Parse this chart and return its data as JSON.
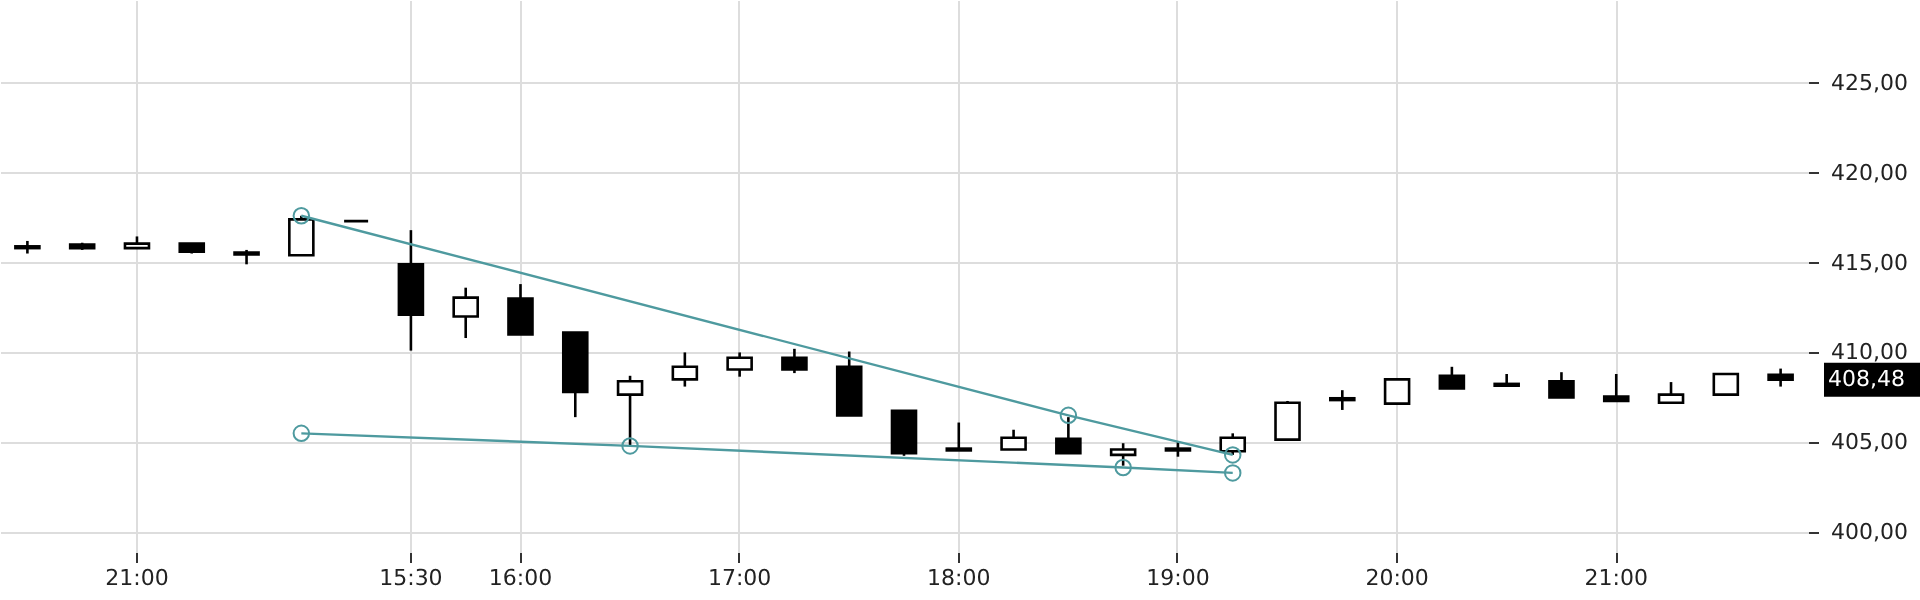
{
  "chart_data": {
    "type": "candlestick",
    "categories": [
      null,
      null,
      "21:00",
      null,
      null,
      null,
      null,
      "15:30",
      null,
      "16:00",
      null,
      null,
      null,
      "17:00",
      null,
      null,
      null,
      "18:00",
      null,
      null,
      null,
      "19:00",
      null,
      null,
      null,
      "20:00",
      null,
      null,
      null,
      "21:00",
      null,
      null,
      null
    ],
    "ohlc": [
      [
        415.8,
        416.2,
        415.5,
        415.9
      ],
      [
        416.0,
        416.1,
        415.7,
        415.8
      ],
      [
        415.8,
        416.45,
        415.8,
        416.05
      ],
      [
        416.05,
        416.05,
        415.5,
        415.6
      ],
      [
        415.55,
        415.7,
        414.9,
        415.45
      ],
      [
        415.4,
        417.6,
        415.4,
        417.4
      ],
      [
        417.3,
        417.3,
        417.3,
        417.3
      ],
      [
        414.9,
        416.8,
        410.1,
        412.1
      ],
      [
        412.0,
        413.6,
        410.8,
        413.05
      ],
      [
        413.0,
        413.8,
        411.0,
        411.0
      ],
      [
        411.1,
        411.1,
        406.4,
        407.8
      ],
      [
        407.65,
        408.7,
        404.8,
        408.4
      ],
      [
        408.5,
        410.0,
        408.1,
        409.2
      ],
      [
        409.05,
        410.0,
        408.65,
        409.7
      ],
      [
        409.7,
        410.2,
        408.85,
        409.05
      ],
      [
        409.2,
        410.05,
        406.5,
        406.5
      ],
      [
        406.75,
        406.75,
        404.25,
        404.4
      ],
      [
        404.65,
        406.1,
        404.55,
        404.55
      ],
      [
        404.6,
        405.7,
        404.6,
        405.25
      ],
      [
        405.2,
        406.4,
        404.4,
        404.4
      ],
      [
        404.3,
        404.95,
        403.7,
        404.6
      ],
      [
        404.65,
        405.05,
        404.2,
        404.55
      ],
      [
        404.5,
        405.5,
        404.3,
        405.25
      ],
      [
        405.15,
        407.3,
        405.15,
        407.2
      ],
      [
        407.35,
        407.9,
        406.8,
        407.45
      ],
      [
        407.15,
        408.5,
        407.15,
        408.5
      ],
      [
        408.7,
        409.2,
        408.0,
        408.0
      ],
      [
        408.25,
        408.8,
        408.15,
        408.15
      ],
      [
        408.4,
        408.9,
        407.5,
        407.5
      ],
      [
        407.55,
        408.8,
        407.3,
        407.3
      ],
      [
        407.2,
        408.35,
        407.2,
        407.65
      ],
      [
        407.65,
        408.8,
        407.65,
        408.8
      ],
      [
        408.75,
        409.1,
        408.1,
        408.48
      ]
    ],
    "series": [
      {
        "type": "line",
        "color": "#4e9a9f",
        "values": [
          null,
          null,
          null,
          null,
          null,
          417.6,
          null,
          null,
          null,
          null,
          null,
          null,
          null,
          null,
          null,
          null,
          null,
          null,
          null,
          406.5,
          null,
          null,
          404.3,
          null,
          null,
          null,
          null,
          null,
          null,
          null,
          null,
          null,
          null
        ]
      },
      {
        "type": "line",
        "color": "#4e9a9f",
        "values": [
          null,
          null,
          null,
          null,
          null,
          405.5,
          null,
          null,
          null,
          null,
          null,
          404.8,
          null,
          null,
          null,
          null,
          null,
          null,
          null,
          null,
          403.6,
          null,
          403.3,
          null,
          null,
          null,
          null,
          null,
          null,
          null,
          null,
          null,
          null
        ]
      }
    ],
    "marker": "circle",
    "ylim": [
      398.9,
      429.6
    ],
    "yticks": [
      {
        "value": 400,
        "label": "400,00"
      },
      {
        "value": 405,
        "label": "405,00"
      },
      {
        "value": 410,
        "label": "410,00"
      },
      {
        "value": 415,
        "label": "415,00"
      },
      {
        "value": 420,
        "label": "420,00"
      },
      {
        "value": 425,
        "label": "425,00"
      }
    ],
    "grid": true,
    "annotations": [
      "408,48"
    ]
  }
}
